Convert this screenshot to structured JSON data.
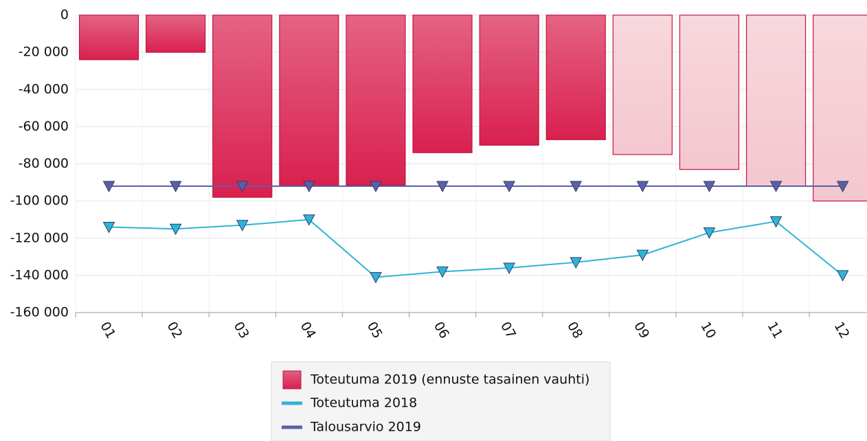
{
  "chart_data": {
    "type": "bar_line",
    "categories": [
      "01",
      "02",
      "03",
      "04",
      "05",
      "06",
      "07",
      "08",
      "09",
      "10",
      "11",
      "12"
    ],
    "series": [
      {
        "name": "Toteutuma 2019 (ennuste tasainen vauhti)",
        "type": "bar",
        "color": "#d9204f",
        "colors": [
          "#d9204f",
          "#d9204f",
          "#d9204f",
          "#d9204f",
          "#d9204f",
          "#d9204f",
          "#d9204f",
          "#d9204f",
          "#f4c7cf",
          "#f4c7cf",
          "#f4c7cf",
          "#f4c7cf"
        ],
        "values": [
          -24000,
          -20000,
          -98000,
          -92000,
          -91500,
          -74000,
          -70000,
          -67000,
          -75000,
          -83000,
          -92000,
          -100000
        ]
      },
      {
        "name": "Toteutuma 2018",
        "type": "line",
        "color": "#2db4d6",
        "values": [
          -114000,
          -115000,
          -113000,
          -110000,
          -141000,
          -138000,
          -136000,
          -133000,
          -129000,
          -117000,
          -111000,
          -140000
        ]
      },
      {
        "name": "Talousarvio 2019",
        "type": "line",
        "color": "#5b5fa8",
        "values": [
          -92000,
          -92000,
          -92000,
          -92000,
          -92000,
          -92000,
          -92000,
          -92000,
          -92000,
          -92000,
          -92000,
          -92000
        ]
      }
    ],
    "ylim": [
      -160000,
      0
    ],
    "yticks": [
      0,
      {
        "value": -20000,
        "label": "-20 000"
      },
      {
        "value": -40000,
        "label": "-40 000"
      },
      {
        "value": -60000,
        "label": "-60 000"
      },
      {
        "value": -80000,
        "label": "-80 000"
      },
      {
        "value": -100000,
        "label": "-100 000"
      },
      {
        "value": -120000,
        "label": "-120 000"
      },
      {
        "value": -140000,
        "label": "-140 000"
      },
      {
        "value": -160000,
        "label": "-160 000"
      }
    ],
    "grid": true,
    "legend": "bottom"
  }
}
